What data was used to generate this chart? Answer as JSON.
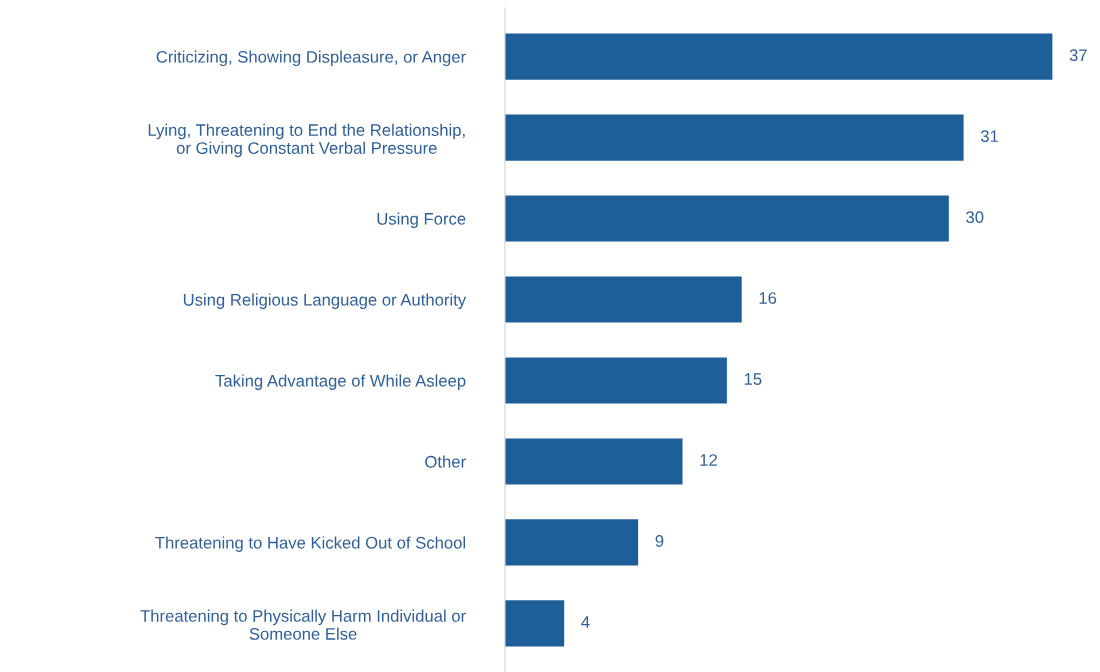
{
  "chart_data": {
    "type": "bar",
    "orientation": "horizontal",
    "data_labels": true,
    "grid": false,
    "legend": false,
    "categories": [
      "Criticizing, Showing Displeasure, or Anger",
      "Lying, Threatening to End the Relationship,\nor Giving Constant Verbal Pressure",
      "Using Force",
      "Using Religious Language or Authority",
      "Taking Advantage of While Asleep",
      "Other",
      "Threatening to Have Kicked Out of School",
      "Threatening to Physically Harm Individual or\nSomeone Else"
    ],
    "values": [
      37,
      31,
      30,
      16,
      15,
      12,
      9,
      4
    ],
    "color": "#1f5f99"
  }
}
